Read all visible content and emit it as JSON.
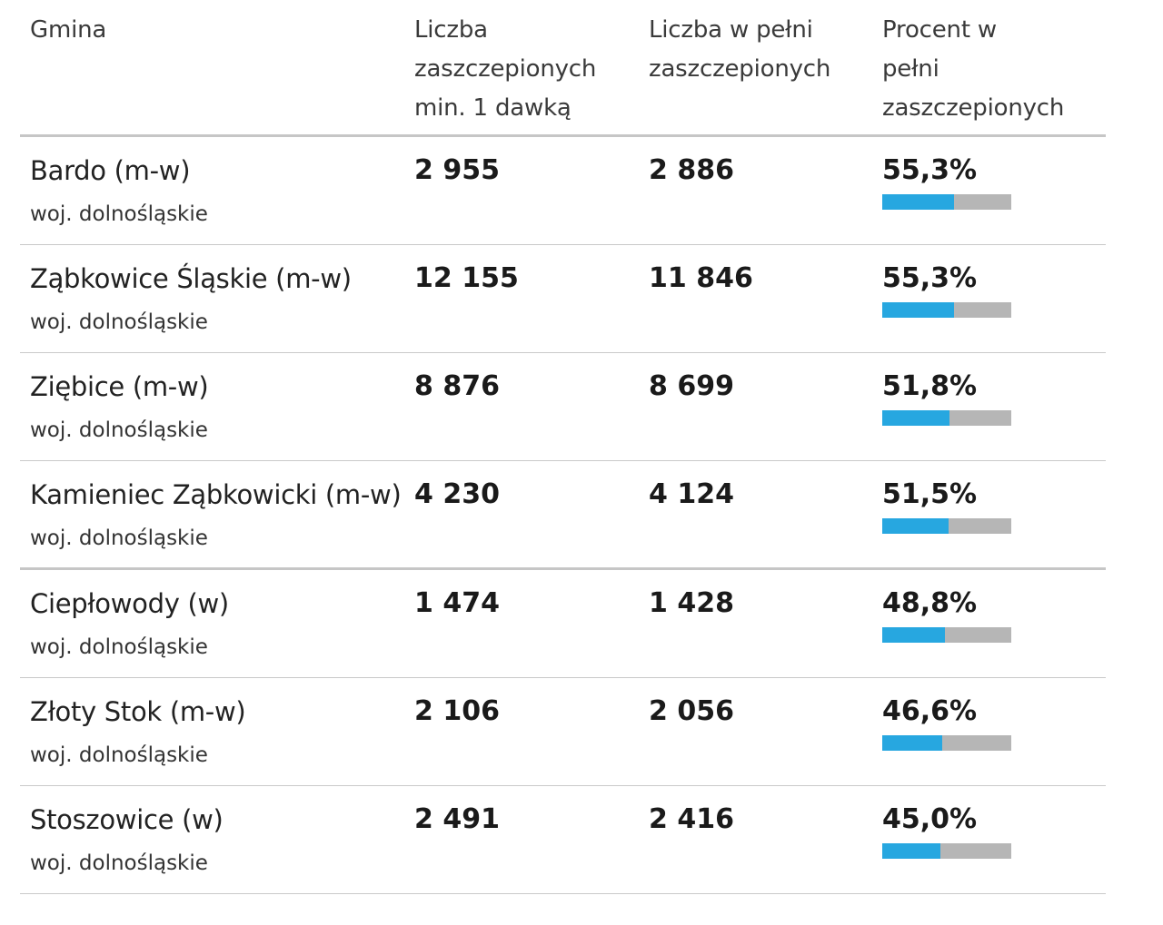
{
  "header": {
    "col_gmina": "Gmina",
    "col_dose1_l1": "Liczba",
    "col_dose1_l2": "zaszczepionych",
    "col_dose1_l3": "min. 1 dawką",
    "col_full_l1": "Liczba w pełni",
    "col_full_l2": "zaszczepionych",
    "col_pct_l1": "Procent w",
    "col_pct_l2": "pełni",
    "col_pct_l3": "zaszczepionych"
  },
  "colors": {
    "bar_fill": "#27a7e0",
    "bar_track": "#b6b6b6"
  },
  "rows": [
    {
      "name": "Bardo (m-w)",
      "region": "woj. dolnośląskie",
      "dose1": "2 955",
      "full": "2 886",
      "pct": "55,3%",
      "pct_value": 55.3
    },
    {
      "name": "Ząbkowice Śląskie (m-w)",
      "region": "woj. dolnośląskie",
      "dose1": "12 155",
      "full": "11 846",
      "pct": "55,3%",
      "pct_value": 55.3
    },
    {
      "name": "Ziębice (m-w)",
      "region": "woj. dolnośląskie",
      "dose1": "8 876",
      "full": "8 699",
      "pct": "51,8%",
      "pct_value": 51.8
    },
    {
      "name": "Kamieniec Ząbkowicki (m-w)",
      "region": "woj. dolnośląskie",
      "dose1": "4 230",
      "full": "4 124",
      "pct": "51,5%",
      "pct_value": 51.5
    },
    {
      "name": "Ciepłowody (w)",
      "region": "woj. dolnośląskie",
      "dose1": "1 474",
      "full": "1 428",
      "pct": "48,8%",
      "pct_value": 48.8
    },
    {
      "name": "Złoty Stok (m-w)",
      "region": "woj. dolnośląskie",
      "dose1": "2 106",
      "full": "2 056",
      "pct": "46,6%",
      "pct_value": 46.6
    },
    {
      "name": "Stoszowice (w)",
      "region": "woj. dolnośląskie",
      "dose1": "2 491",
      "full": "2 416",
      "pct": "45,0%",
      "pct_value": 45.0
    }
  ]
}
